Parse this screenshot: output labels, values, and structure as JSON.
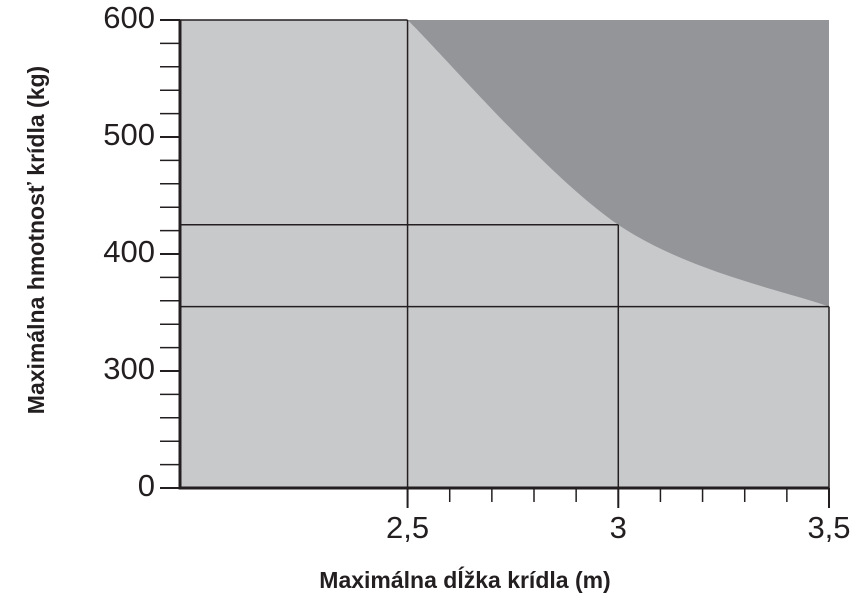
{
  "chart_data": {
    "type": "area",
    "x_label": "Maximálna dĺžka krídla (m)",
    "y_label": "Maximálna hmotnosť krídla (kg)",
    "x": [
      2.5,
      3,
      3.5
    ],
    "series": [
      {
        "name": "Maximálna hmotnosť",
        "color": "#c8c9cb",
        "values": [
          600,
          425,
          355
        ]
      }
    ],
    "above_color": "#939598",
    "xlim": [
      1.96,
      3.5
    ],
    "xticks": [
      {
        "value": 2.5,
        "label": "2,5"
      },
      3,
      {
        "value": 3.5,
        "label": "3,5"
      }
    ],
    "x_minor_step": 0.1,
    "ylim": [
      0,
      600
    ],
    "yticks": [
      0,
      300,
      400,
      500,
      600
    ],
    "y_axis_break": true,
    "y_minor_per_major": 5,
    "reference_lines": true
  }
}
